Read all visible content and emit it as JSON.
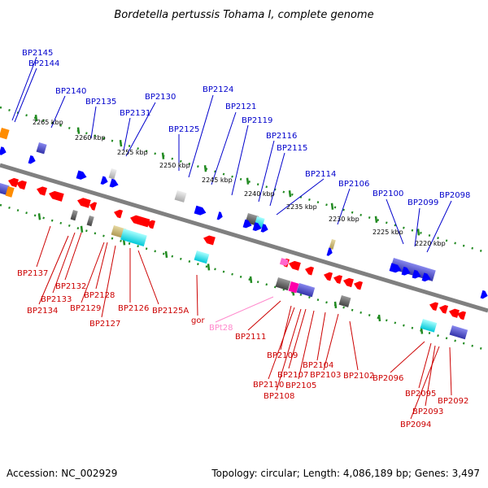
{
  "title": "Bordetella pertussis Tohama I, complete genome",
  "footer": {
    "accession": "Accession: NC_002929",
    "topology": "Topology: circular; Length: 4,086,189 bp; Genes: 3,497"
  },
  "colors": {
    "backbone": "#808080",
    "scale": "#228b22",
    "forward_gene": "#0000ff",
    "reverse_gene": "#ff0000",
    "rna_gene": "#ff66cc",
    "cog_cyan": "#00ffff",
    "cog_blue": "#5555cc",
    "cog_gray": "#555555",
    "cog_khaki": "#c8b46e",
    "cog_orange": "#ff8c00",
    "cog_magenta": "#ff00aa"
  },
  "ticks": [
    {
      "label": "2265 kbp"
    },
    {
      "label": "2260 kbp"
    },
    {
      "label": "2255 kbp"
    },
    {
      "label": "2250 kbp"
    },
    {
      "label": "2245 kbp"
    },
    {
      "label": "2240 kbp"
    },
    {
      "label": "2235 kbp"
    },
    {
      "label": "2230 kbp"
    },
    {
      "label": "2225 kbp"
    },
    {
      "label": "2220 kbp"
    }
  ],
  "forward_labels": [
    {
      "text": "BP2145"
    },
    {
      "text": "BP2144"
    },
    {
      "text": "BP2140"
    },
    {
      "text": "BP2135"
    },
    {
      "text": "BP2131"
    },
    {
      "text": "BP2130"
    },
    {
      "text": "BP2125"
    },
    {
      "text": "BP2124"
    },
    {
      "text": "BP2121"
    },
    {
      "text": "BP2119"
    },
    {
      "text": "BP2116"
    },
    {
      "text": "BP2115"
    },
    {
      "text": "BP2114"
    },
    {
      "text": "BP2106"
    },
    {
      "text": "BP2100"
    },
    {
      "text": "BP2099"
    },
    {
      "text": "BP2098"
    }
  ],
  "reverse_labels": [
    {
      "text": "BP2137"
    },
    {
      "text": "BP2132"
    },
    {
      "text": "BP2133"
    },
    {
      "text": "BP2134"
    },
    {
      "text": "BP2128"
    },
    {
      "text": "BP2129"
    },
    {
      "text": "BP2127"
    },
    {
      "text": "BP2126"
    },
    {
      "text": "BP2125A"
    },
    {
      "text": "gor"
    },
    {
      "text": "BPt28"
    },
    {
      "text": "BP2111"
    },
    {
      "text": "BP2109"
    },
    {
      "text": "BP2110"
    },
    {
      "text": "BP2108"
    },
    {
      "text": "BP2107"
    },
    {
      "text": "BP2105"
    },
    {
      "text": "BP2104"
    },
    {
      "text": "BP2103"
    },
    {
      "text": "BP2102"
    },
    {
      "text": "BP2096"
    },
    {
      "text": "BP2095"
    },
    {
      "text": "BP2093"
    },
    {
      "text": "BP2094"
    },
    {
      "text": "BP2092"
    }
  ]
}
